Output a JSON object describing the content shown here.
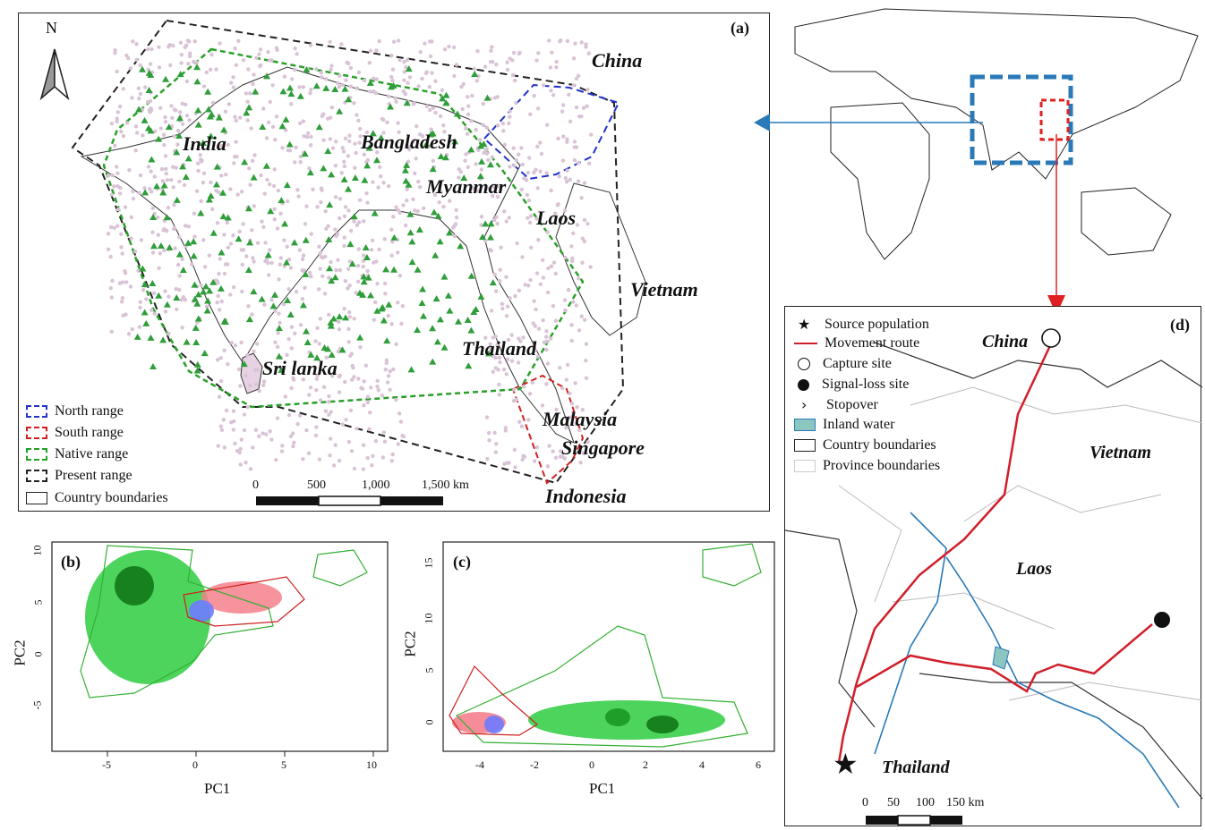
{
  "panel_a": {
    "label": "(a)",
    "north_label": "N",
    "countries": [
      "China",
      "India",
      "Bangladesh",
      "Myanmar",
      "Laos",
      "Vietnam",
      "Thailand",
      "Sri lanka",
      "Malaysia",
      "Singapore",
      "Indonesia"
    ],
    "legend": [
      "North range",
      "South range",
      "Native range",
      "Present range",
      "Country boundaries"
    ],
    "legend_colors": [
      "#2233cc",
      "#d02020",
      "#22a022",
      "#222222",
      "#222222"
    ],
    "scale_ticks": [
      "0",
      "500",
      "1,000",
      "1,500 km"
    ]
  },
  "panel_b": {
    "label": "(b)",
    "xlabel": "PC1",
    "ylabel": "PC2",
    "x_ticks": [
      "-5",
      "0",
      "5",
      "10"
    ],
    "y_ticks": [
      "10",
      "5",
      "0",
      "-5"
    ]
  },
  "panel_c": {
    "label": "(c)",
    "xlabel": "PC1",
    "ylabel": "PC2",
    "x_ticks": [
      "-4",
      "-2",
      "0",
      "2",
      "4",
      "6"
    ],
    "y_ticks": [
      "15",
      "10",
      "5",
      "0"
    ]
  },
  "panel_d": {
    "label": "(d)",
    "legend": [
      "Source population",
      "Movement route",
      "Capture site",
      "Signal-loss site",
      "Stopover",
      "Inland water",
      "Country boundaries",
      "Province boundaries"
    ],
    "countries": [
      "China",
      "Vietnam",
      "Laos",
      "Thailand"
    ],
    "scale_ticks": [
      "0",
      "50",
      "100",
      "150 km"
    ],
    "route_color": "#d01f2a",
    "water_color": "#2a7ab8"
  },
  "colors": {
    "inset_box": "#2a7ab8",
    "arrow_red": "#e02020",
    "native_points": "#2f9e3a",
    "present_points": "#d9c3d6"
  }
}
